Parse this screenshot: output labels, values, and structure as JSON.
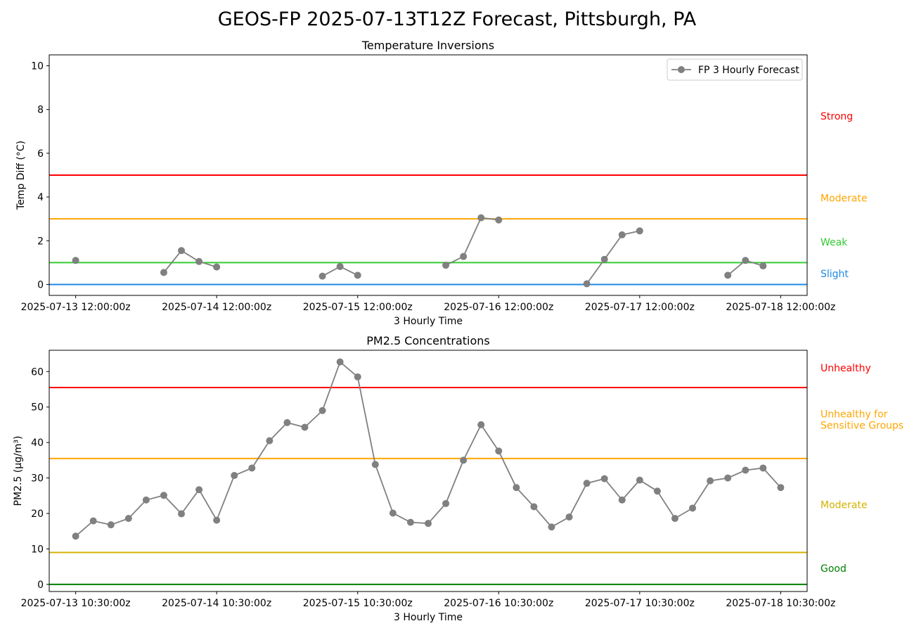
{
  "figure": {
    "title": "GEOS-FP 2025-07-13T12Z Forecast, Pittsburgh, PA"
  },
  "chart_data": [
    {
      "type": "line",
      "title": "Temperature Inversions",
      "xlabel": "3 Hourly Time",
      "ylabel": "Temp Diff (°C)",
      "ylim": [
        -0.5,
        10.5
      ],
      "yticks": [
        0,
        2,
        4,
        6,
        8,
        10
      ],
      "xlim": [
        "2025-07-13T07:30:00Z",
        "2025-07-18T16:30:00Z"
      ],
      "xticks": [
        {
          "t": "2025-07-13T12:00:00Z",
          "label": "2025-07-13 12:00:00z"
        },
        {
          "t": "2025-07-14T12:00:00Z",
          "label": "2025-07-14 12:00:00z"
        },
        {
          "t": "2025-07-15T12:00:00Z",
          "label": "2025-07-15 12:00:00z"
        },
        {
          "t": "2025-07-16T12:00:00Z",
          "label": "2025-07-16 12:00:00z"
        },
        {
          "t": "2025-07-17T12:00:00Z",
          "label": "2025-07-17 12:00:00z"
        },
        {
          "t": "2025-07-18T12:00:00Z",
          "label": "2025-07-18 12:00:00z"
        }
      ],
      "legend": {
        "position": "top-right",
        "entries": [
          "FP 3 Hourly Forecast"
        ]
      },
      "series": [
        {
          "name": "FP 3 Hourly Forecast",
          "color": "#808080",
          "segments": [
            [
              {
                "t": "2025-07-13T12:00:00Z",
                "y": 1.1
              }
            ],
            [
              {
                "t": "2025-07-14T03:00:00Z",
                "y": 0.55
              },
              {
                "t": "2025-07-14T06:00:00Z",
                "y": 1.55
              },
              {
                "t": "2025-07-14T09:00:00Z",
                "y": 1.05
              },
              {
                "t": "2025-07-14T12:00:00Z",
                "y": 0.8
              }
            ],
            [
              {
                "t": "2025-07-15T06:00:00Z",
                "y": 0.38
              },
              {
                "t": "2025-07-15T09:00:00Z",
                "y": 0.82
              },
              {
                "t": "2025-07-15T12:00:00Z",
                "y": 0.42
              }
            ],
            [
              {
                "t": "2025-07-16T03:00:00Z",
                "y": 0.88
              },
              {
                "t": "2025-07-16T06:00:00Z",
                "y": 1.28
              },
              {
                "t": "2025-07-16T09:00:00Z",
                "y": 3.05
              },
              {
                "t": "2025-07-16T12:00:00Z",
                "y": 2.95
              }
            ],
            [
              {
                "t": "2025-07-17T03:00:00Z",
                "y": 0.03
              },
              {
                "t": "2025-07-17T06:00:00Z",
                "y": 1.15
              },
              {
                "t": "2025-07-17T09:00:00Z",
                "y": 2.27
              },
              {
                "t": "2025-07-17T12:00:00Z",
                "y": 2.45
              }
            ],
            [
              {
                "t": "2025-07-18T03:00:00Z",
                "y": 0.42
              },
              {
                "t": "2025-07-18T06:00:00Z",
                "y": 1.1
              },
              {
                "t": "2025-07-18T09:00:00Z",
                "y": 0.85
              }
            ]
          ]
        }
      ],
      "thresholds": [
        {
          "value": 0,
          "color": "#1e88e5"
        },
        {
          "value": 1,
          "color": "#33cc33"
        },
        {
          "value": 3,
          "color": "#ffa500"
        },
        {
          "value": 5,
          "color": "#ff0000"
        }
      ],
      "category_labels": [
        {
          "label": "Strong",
          "y": 7.7,
          "color": "#ff0000"
        },
        {
          "label": "Moderate",
          "y": 3.95,
          "color": "#ffa500"
        },
        {
          "label": "Weak",
          "y": 1.95,
          "color": "#33cc33"
        },
        {
          "label": "Slight",
          "y": 0.5,
          "color": "#1e88e5"
        }
      ]
    },
    {
      "type": "line",
      "title": "PM2.5 Concentrations",
      "xlabel": "3 Hourly Time",
      "ylabel": "PM2.5 (μg/m³)",
      "ylim": [
        -2,
        66
      ],
      "yticks": [
        0,
        10,
        20,
        30,
        40,
        50,
        60
      ],
      "xlim": [
        "2025-07-13T06:00:00Z",
        "2025-07-18T15:00:00Z"
      ],
      "xticks": [
        {
          "t": "2025-07-13T10:30:00Z",
          "label": "2025-07-13 10:30:00z"
        },
        {
          "t": "2025-07-14T10:30:00Z",
          "label": "2025-07-14 10:30:00z"
        },
        {
          "t": "2025-07-15T10:30:00Z",
          "label": "2025-07-15 10:30:00z"
        },
        {
          "t": "2025-07-16T10:30:00Z",
          "label": "2025-07-16 10:30:00z"
        },
        {
          "t": "2025-07-17T10:30:00Z",
          "label": "2025-07-17 10:30:00z"
        },
        {
          "t": "2025-07-18T10:30:00Z",
          "label": "2025-07-18 10:30:00z"
        }
      ],
      "series": [
        {
          "color": "#808080",
          "start": "2025-07-13T10:30:00Z",
          "step_hours": 3,
          "values": [
            13.6,
            17.9,
            16.8,
            18.6,
            23.8,
            25.1,
            19.9,
            26.7,
            18.1,
            30.7,
            32.8,
            40.5,
            45.6,
            44.3,
            49.0,
            62.7,
            58.5,
            33.8,
            20.1,
            17.5,
            17.2,
            22.8,
            35.0,
            45.0,
            37.6,
            27.3,
            21.9,
            16.2,
            19.0,
            28.5,
            29.8,
            23.8,
            29.4,
            26.3,
            18.6,
            21.5,
            29.2,
            30.0,
            32.2,
            32.8,
            27.3
          ]
        }
      ],
      "thresholds": [
        {
          "value": 0,
          "color": "#008000"
        },
        {
          "value": 9,
          "color": "#d4b200"
        },
        {
          "value": 35.5,
          "color": "#ffa500"
        },
        {
          "value": 55.5,
          "color": "#ff0000"
        }
      ],
      "category_labels": [
        {
          "label": "Unhealthy",
          "y": 61,
          "color": "#ff0000"
        },
        {
          "label": "Unhealthy for\nSensitive Groups",
          "y": 46.5,
          "color": "#ffa500"
        },
        {
          "label": "Moderate",
          "y": 22.5,
          "color": "#d4b200"
        },
        {
          "label": "Good",
          "y": 4.5,
          "color": "#008000"
        }
      ]
    }
  ]
}
